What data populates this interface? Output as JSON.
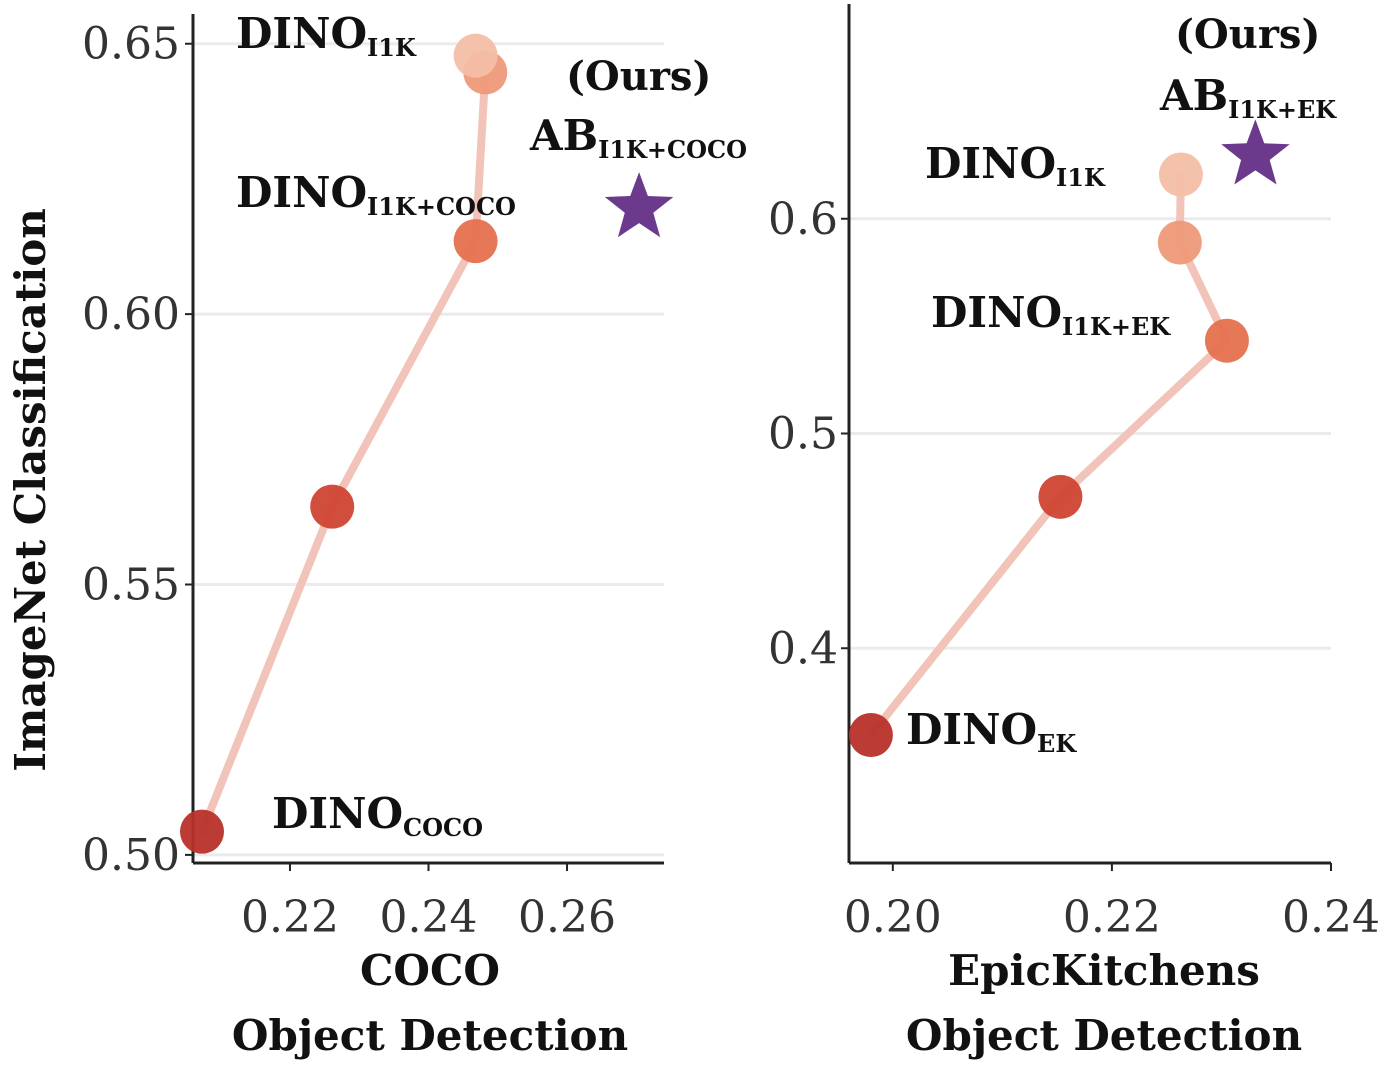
{
  "chart_data": [
    {
      "type": "line",
      "panel": "left",
      "xlabel": [
        "COCO",
        "Object Detection"
      ],
      "ylabel": "ImageNet Classification",
      "xlim": [
        0.206,
        0.274
      ],
      "ylim": [
        0.4985,
        0.6555
      ],
      "xticks": [
        0.22,
        0.24,
        0.26
      ],
      "xtick_labels": [
        "0.22",
        "0.24",
        "0.26"
      ],
      "yticks": [
        0.5,
        0.55,
        0.6,
        0.65
      ],
      "ytick_labels": [
        "0.50",
        "0.55",
        "0.60",
        "0.65"
      ],
      "grid": "horizontal",
      "series": [
        {
          "points": [
            {
              "x": 0.2073,
              "y": 0.5043,
              "color": "#b8312a"
            },
            {
              "x": 0.2261,
              "y": 0.5644,
              "color": "#d04432"
            },
            {
              "x": 0.2468,
              "y": 0.6135,
              "color": "#e5714f"
            },
            {
              "x": 0.2482,
              "y": 0.6447,
              "color": "#ee9a79"
            },
            {
              "x": 0.2468,
              "y": 0.6478,
              "color": "#f3bea5"
            }
          ]
        }
      ],
      "ours": {
        "x": 0.2704,
        "y": 0.6196,
        "color": "#6b3a8d"
      },
      "annotations": [
        {
          "main": "DINO",
          "sub": "I1K",
          "anchor": "top"
        },
        {
          "main": "DINO",
          "sub": "I1K+COCO",
          "anchor": "mid"
        },
        {
          "main": "DINO",
          "sub": "COCO",
          "anchor": "bottom"
        },
        {
          "main": "AB",
          "sub": "I1K+COCO",
          "anchor": "ours"
        },
        {
          "text": "(Ours)",
          "anchor": "ours-top"
        }
      ]
    },
    {
      "type": "line",
      "panel": "right",
      "xlabel": [
        "EpicKitchens",
        "Object Detection"
      ],
      "ylabel": "",
      "xlim": [
        0.196,
        0.24
      ],
      "ylim": [
        0.3,
        0.7
      ],
      "xticks": [
        0.2,
        0.22,
        0.24
      ],
      "xtick_labels": [
        "0.20",
        "0.22",
        "0.24"
      ],
      "yticks": [
        0.4,
        0.5,
        0.6
      ],
      "ytick_labels": [
        "0.4",
        "0.5",
        "0.6"
      ],
      "grid": "horizontal",
      "series": [
        {
          "points": [
            {
              "x": 0.198,
              "y": 0.3596,
              "color": "#b8312a"
            },
            {
              "x": 0.2153,
              "y": 0.4705,
              "color": "#d04432"
            },
            {
              "x": 0.2305,
              "y": 0.5432,
              "color": "#e5714f"
            },
            {
              "x": 0.2262,
              "y": 0.5889,
              "color": "#ee9a79"
            },
            {
              "x": 0.2263,
              "y": 0.6206,
              "color": "#f3bea5"
            }
          ]
        }
      ],
      "ours": {
        "x": 0.2331,
        "y": 0.6295,
        "color": "#6b3a8d"
      },
      "annotations": [
        {
          "main": "DINO",
          "sub": "I1K",
          "anchor": "top"
        },
        {
          "main": "DINO",
          "sub": "I1K+EK",
          "anchor": "mid"
        },
        {
          "main": "DINO",
          "sub": "EK",
          "anchor": "bottom"
        },
        {
          "main": "AB",
          "sub": "I1K+EK",
          "anchor": "ours"
        },
        {
          "text": "(Ours)",
          "anchor": "ours-top"
        }
      ]
    }
  ]
}
